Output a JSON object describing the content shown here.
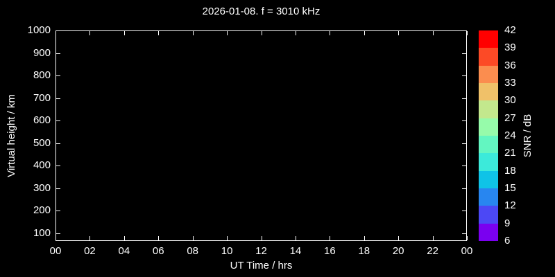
{
  "figure": {
    "background_color": "#000000",
    "text_color": "#ffffff",
    "frame_color": "#ffffff"
  },
  "chart_data": {
    "type": "heatmap",
    "title": "2026-01-08. f = 3010 kHz",
    "xlabel": "UT Time / hrs",
    "ylabel": "Virtual height / km",
    "x_tick_labels": [
      "00",
      "02",
      "04",
      "06",
      "08",
      "10",
      "12",
      "14",
      "16",
      "18",
      "20",
      "22",
      "00"
    ],
    "x_tick_hours": [
      0,
      2,
      4,
      6,
      8,
      10,
      12,
      14,
      16,
      18,
      20,
      22,
      24
    ],
    "xlim_hours": [
      0,
      24
    ],
    "y_tick_values": [
      1000,
      900,
      800,
      700,
      600,
      500,
      400,
      300,
      200,
      100
    ],
    "ylim": [
      66,
      1000
    ],
    "grid": false,
    "points": [],
    "colorbar": {
      "label": "SNR / dB",
      "tick_values": [
        42,
        39,
        36,
        33,
        30,
        27,
        24,
        21,
        18,
        15,
        12,
        9,
        6
      ],
      "segment_colors_top_to_bottom": [
        "#ff0000",
        "#fc4a26",
        "#fb8d4f",
        "#f0c169",
        "#c3e88d",
        "#96fbaa",
        "#63f6c1",
        "#3ceada",
        "#0fc3e7",
        "#2886f0",
        "#4c48f5",
        "#7a00f0"
      ]
    }
  }
}
